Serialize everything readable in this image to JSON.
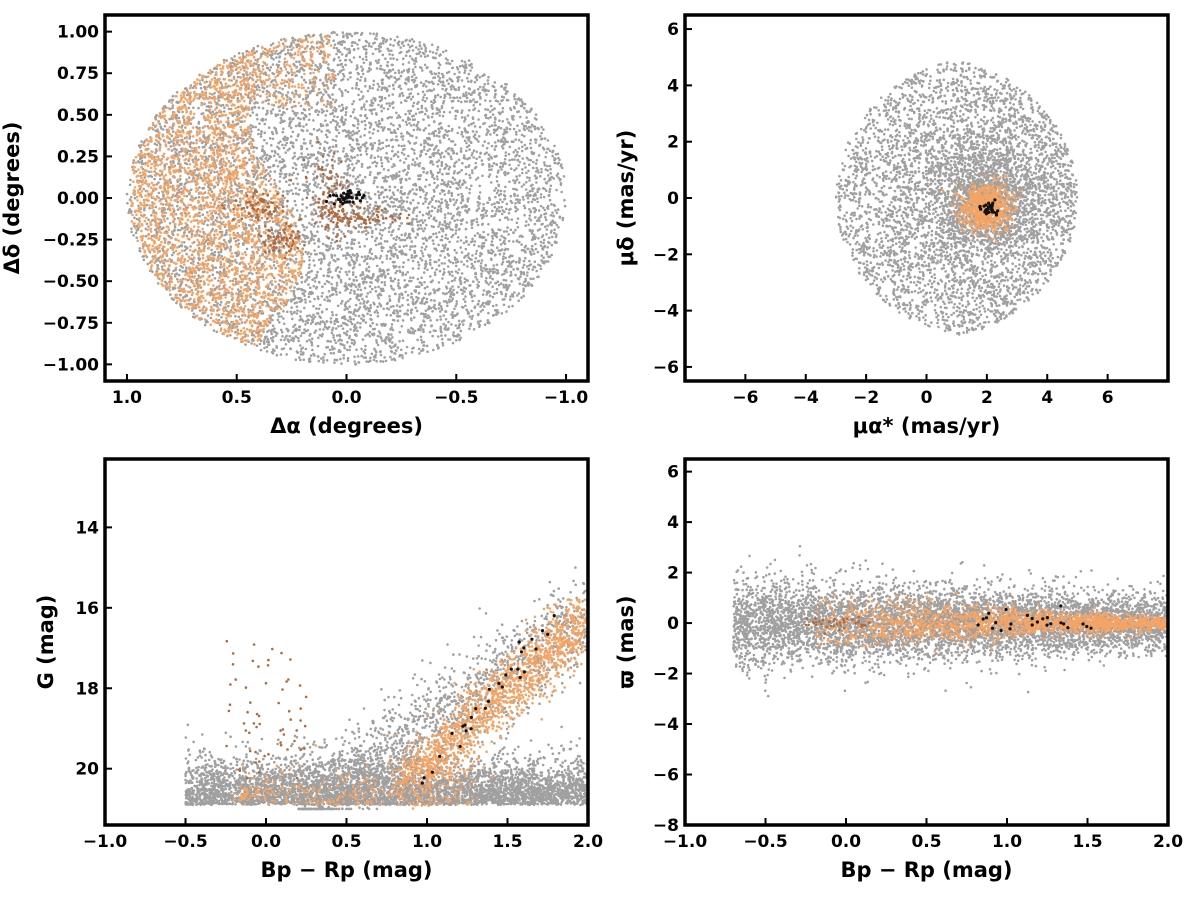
{
  "colors": {
    "field": "#a0a0a0",
    "members_orange": "#f5a464",
    "members_brown": "#b06a3c",
    "core_black": "#111111"
  },
  "chart_data": [
    {
      "id": "sky",
      "type": "scatter",
      "xlabel": "Δα (degrees)",
      "ylabel": "Δδ (degrees)",
      "xlim": [
        1.1,
        -1.1
      ],
      "ylim": [
        -1.1,
        1.1
      ],
      "x_reversed": true,
      "xticks": [
        1.0,
        0.5,
        0.0,
        -0.5,
        -1.0
      ],
      "xtick_labels": [
        "1.0",
        "0.5",
        "0.0",
        "−0.5",
        "−1.0"
      ],
      "yticks": [
        -1.0,
        -0.75,
        -0.5,
        -0.25,
        0.0,
        0.25,
        0.5,
        0.75,
        1.0
      ],
      "ytick_labels": [
        "−1.00",
        "−0.75",
        "−0.50",
        "−0.25",
        "0.00",
        "0.25",
        "0.50",
        "0.75",
        "1.00"
      ],
      "grid": false,
      "series": [
        {
          "color_key": "field",
          "model": {
            "shape": "disk",
            "cx": 0.0,
            "cy": 0.0,
            "r": 1.0,
            "n": 7000
          }
        },
        {
          "color_key": "members_orange",
          "model": {
            "shape": "crescent",
            "cx": 0.0,
            "cy": 0.0,
            "r": 0.99,
            "x_min": 0.38,
            "n": 2400
          }
        },
        {
          "color_key": "members_brown",
          "model": {
            "shape": "clumps",
            "clumps": [
              [
                0.1,
                0.1,
                0.05,
                0.1
              ],
              [
                -0.1,
                -0.12,
                0.08,
                0.03
              ],
              [
                0.4,
                -0.05,
                0.06,
                0.05
              ],
              [
                0.3,
                -0.25,
                0.05,
                0.05
              ],
              [
                0.05,
                -0.1,
                0.04,
                0.06
              ]
            ],
            "n": 320
          }
        },
        {
          "color_key": "core_black",
          "model": {
            "shape": "gauss",
            "cx": 0.0,
            "cy": 0.0,
            "sx": 0.04,
            "sy": 0.025,
            "n": 40
          }
        }
      ]
    },
    {
      "id": "pm",
      "type": "scatter",
      "xlabel": "μα* (mas/yr)",
      "ylabel": "μδ (mas/yr)",
      "xlim": [
        -8,
        8
      ],
      "ylim": [
        -6.5,
        6.5
      ],
      "xticks": [
        -6,
        -4,
        -2,
        0,
        2,
        4,
        6
      ],
      "xtick_labels": [
        "−6",
        "−4",
        "−2",
        "0",
        "2",
        "4",
        "6"
      ],
      "yticks": [
        -6,
        -4,
        -2,
        0,
        2,
        4,
        6
      ],
      "ytick_labels": [
        "−6",
        "−4",
        "−2",
        "0",
        "2",
        "4",
        "6"
      ],
      "grid": false,
      "series": [
        {
          "color_key": "field",
          "model": {
            "shape": "pm_field",
            "cx": 2.0,
            "cy": 0.0,
            "r_max": 5.0,
            "x_max": 5.0,
            "n": 5500
          }
        },
        {
          "color_key": "members_orange",
          "model": {
            "shape": "gauss",
            "cx": 2.0,
            "cy": -0.3,
            "sx": 0.4,
            "sy": 0.4,
            "n": 700
          }
        },
        {
          "color_key": "core_black",
          "model": {
            "shape": "gauss",
            "cx": 2.1,
            "cy": -0.4,
            "sx": 0.15,
            "sy": 0.15,
            "n": 30
          }
        }
      ]
    },
    {
      "id": "cmd",
      "type": "scatter",
      "xlabel": "Bp − Rp (mag)",
      "ylabel": "G (mag)",
      "xlim": [
        -1.0,
        2.0
      ],
      "ylim": [
        21.4,
        12.3
      ],
      "y_reversed": true,
      "xticks": [
        -1.0,
        -0.5,
        0.0,
        0.5,
        1.0,
        1.5,
        2.0
      ],
      "xtick_labels": [
        "−1.0",
        "−0.5",
        "0.0",
        "0.5",
        "1.0",
        "1.5",
        "2.0"
      ],
      "yticks": [
        14,
        16,
        18,
        20
      ],
      "ytick_labels": [
        "14",
        "16",
        "18",
        "20"
      ],
      "grid": false,
      "series": [
        {
          "color_key": "field",
          "model": {
            "shape": "cmd_field",
            "n": 6000
          }
        },
        {
          "color_key": "members_orange",
          "model": {
            "shape": "cmd_seq",
            "n": 1400
          }
        },
        {
          "color_key": "members_brown",
          "model": {
            "shape": "cmd_blue",
            "n": 60
          }
        },
        {
          "color_key": "core_black",
          "model": {
            "shape": "cmd_core",
            "n": 30
          }
        }
      ]
    },
    {
      "id": "plx",
      "type": "scatter",
      "xlabel": "Bp − Rp (mag)",
      "ylabel": "ϖ (mas)",
      "xlim": [
        -1.0,
        2.0
      ],
      "ylim": [
        -8.0,
        6.5
      ],
      "xticks": [
        -1.0,
        -0.5,
        0.0,
        0.5,
        1.0,
        1.5,
        2.0
      ],
      "xtick_labels": [
        "−1.0",
        "−0.5",
        "0.0",
        "0.5",
        "1.0",
        "1.5",
        "2.0"
      ],
      "yticks": [
        -8,
        -6,
        -4,
        -2,
        0,
        2,
        4,
        6
      ],
      "ytick_labels": [
        "−8",
        "−6",
        "−4",
        "−2",
        "0",
        "2",
        "4",
        "6"
      ],
      "grid": false,
      "series": [
        {
          "color_key": "field",
          "model": {
            "shape": "plx_field",
            "n": 6000
          }
        },
        {
          "color_key": "members_orange",
          "model": {
            "shape": "plx_members",
            "n": 1500
          }
        },
        {
          "color_key": "members_brown",
          "model": {
            "shape": "plx_blue",
            "n": 40
          }
        },
        {
          "color_key": "core_black",
          "model": {
            "shape": "plx_core",
            "n": 25
          }
        }
      ]
    }
  ]
}
